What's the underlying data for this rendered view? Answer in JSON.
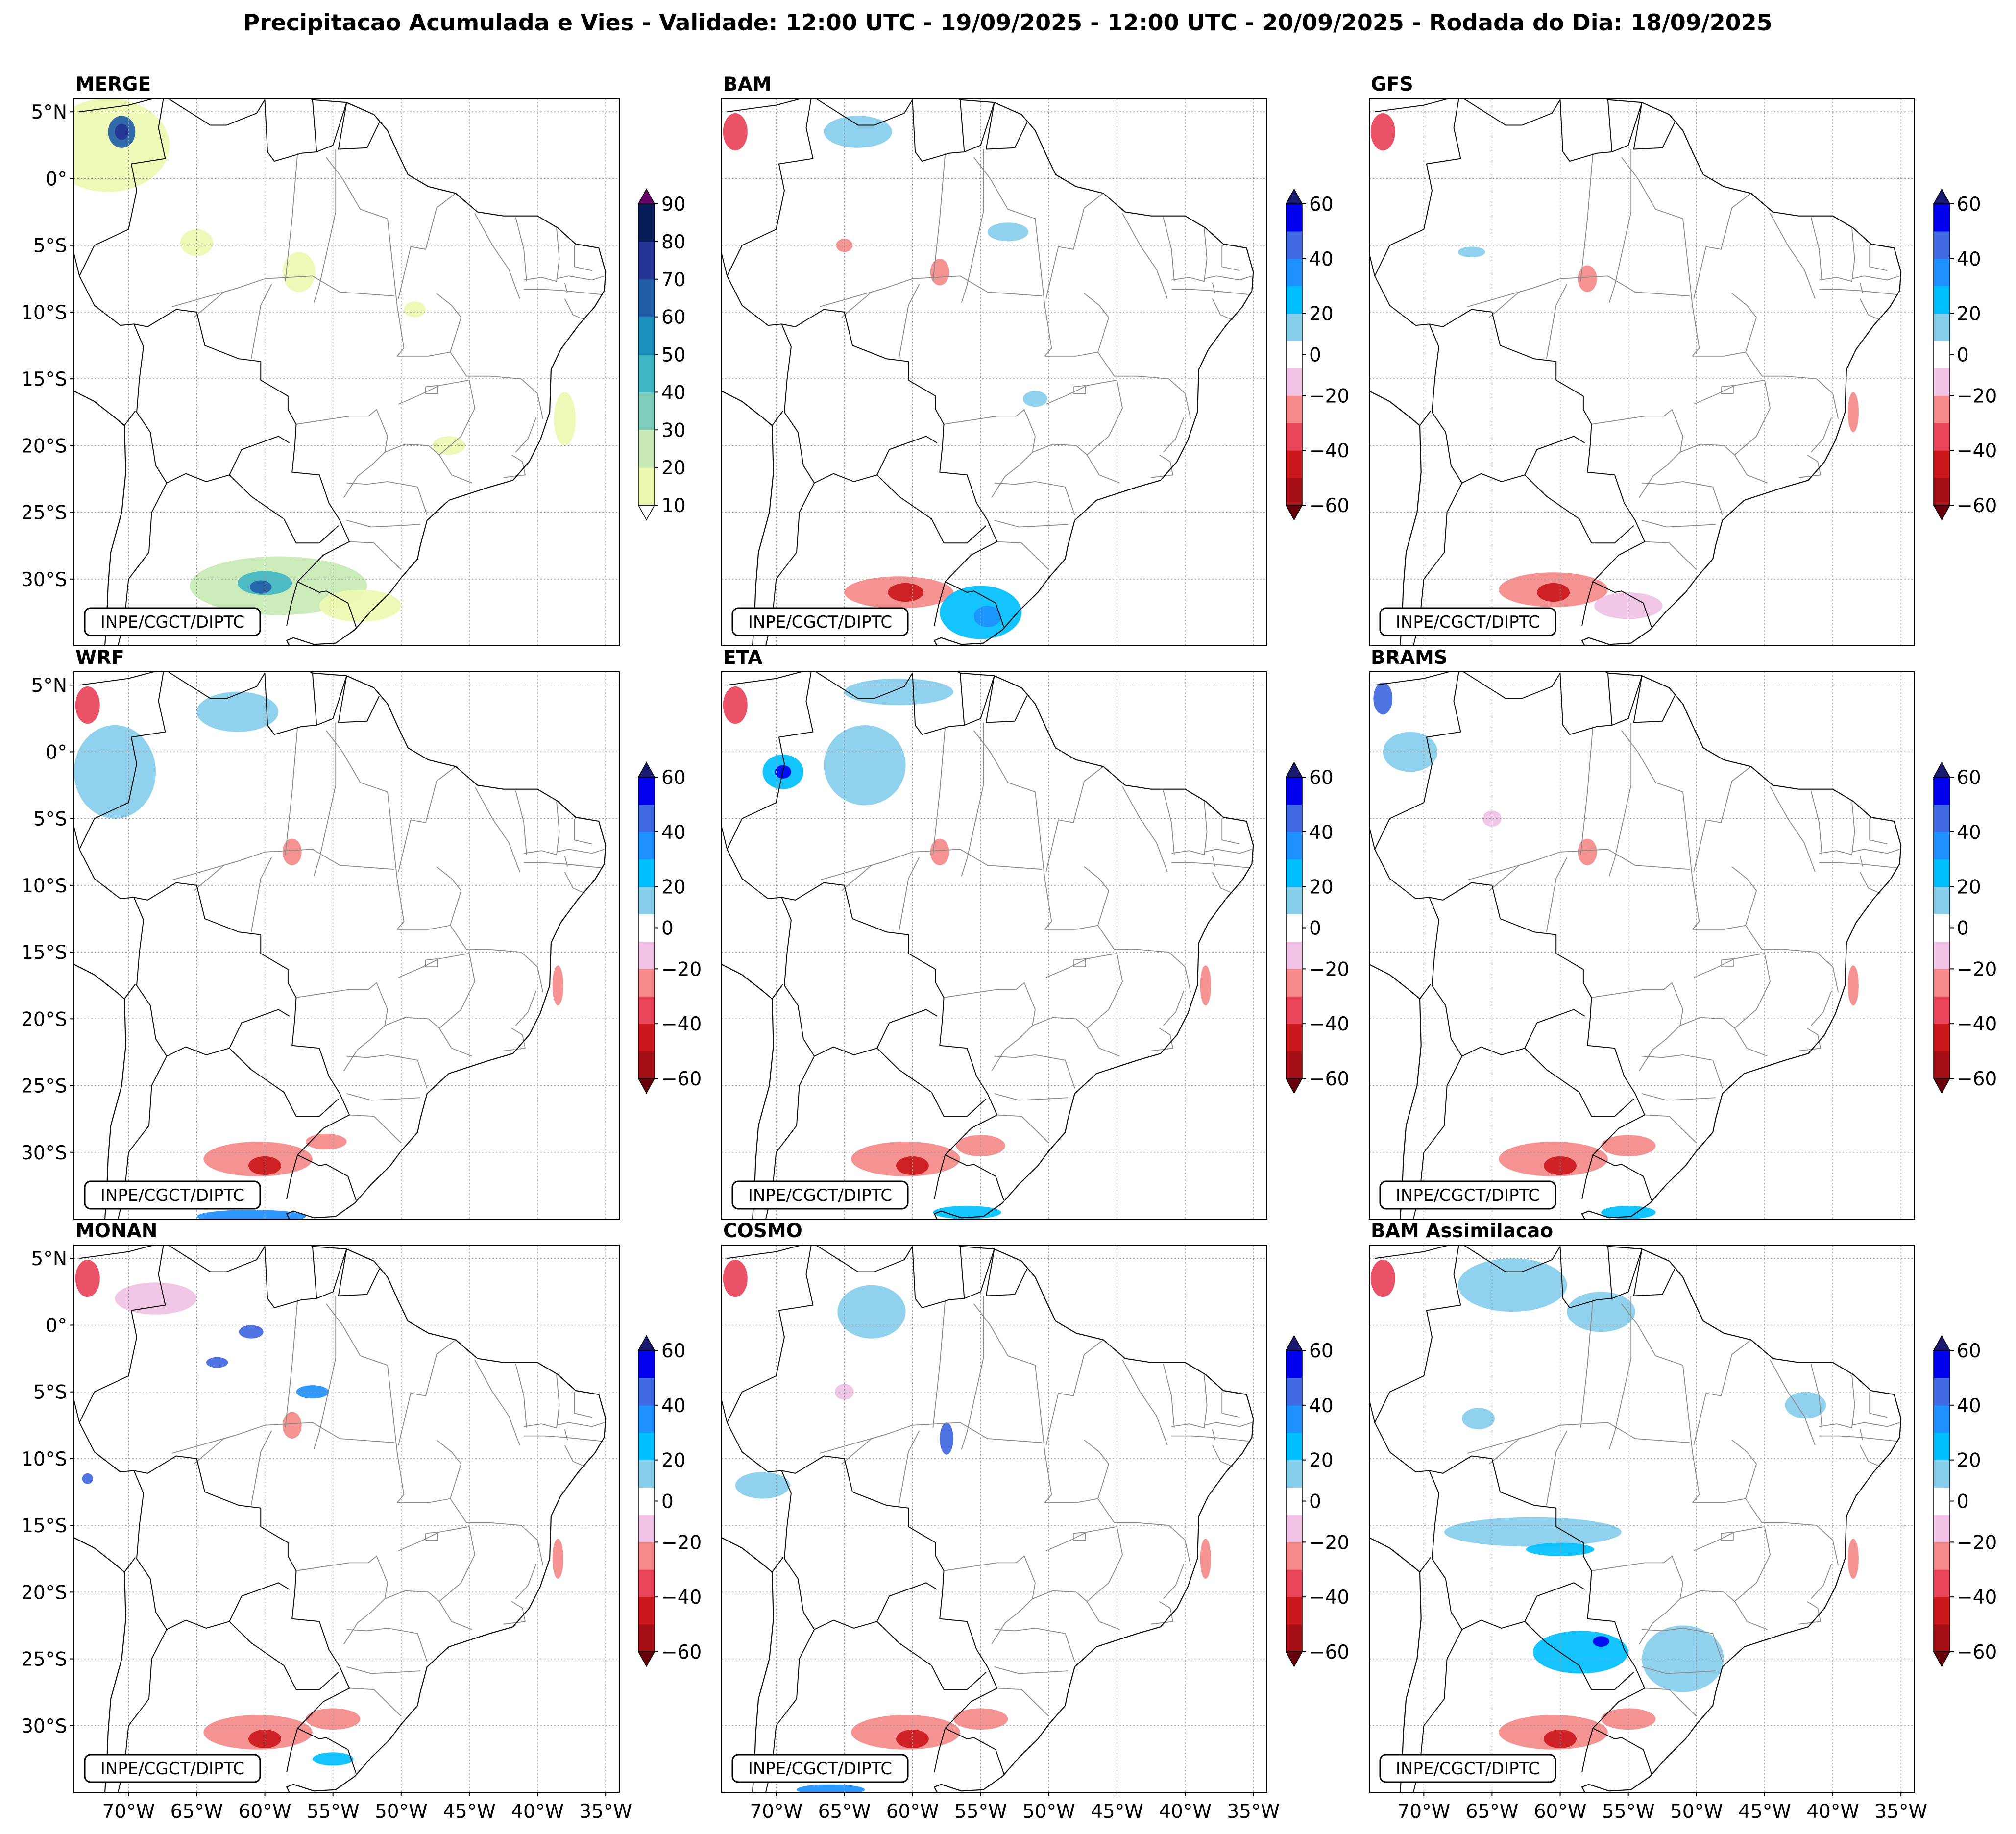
{
  "figure": {
    "title": "Precipitacao Acumulada e Vies - Validade: 12:00 UTC - 19/09/2025 - 12:00 UTC - 20/09/2025 - Rodada do Dia: 18/09/2025",
    "credit": "INPE/CGCT/DIPTC"
  },
  "axes": {
    "lat_ticks": [
      "5°N",
      "0°",
      "5°S",
      "10°S",
      "15°S",
      "20°S",
      "25°S",
      "30°S"
    ],
    "lon_ticks": [
      "70°W",
      "65°W",
      "60°W",
      "55°W",
      "50°W",
      "45°W",
      "40°W",
      "35°W"
    ],
    "lat_values": [
      5,
      0,
      -5,
      -10,
      -15,
      -20,
      -25,
      -30
    ],
    "lon_values": [
      -70,
      -65,
      -60,
      -55,
      -50,
      -45,
      -40,
      -35
    ],
    "lat_range": [
      -35,
      6
    ],
    "lon_range": [
      -74,
      -34
    ]
  },
  "panels": [
    {
      "name": "MERGE",
      "type": "precipitation"
    },
    {
      "name": "BAM",
      "type": "bias"
    },
    {
      "name": "GFS",
      "type": "bias"
    },
    {
      "name": "WRF",
      "type": "bias"
    },
    {
      "name": "ETA",
      "type": "bias"
    },
    {
      "name": "BRAMS",
      "type": "bias"
    },
    {
      "name": "MONAN",
      "type": "bias"
    },
    {
      "name": "COSMO",
      "type": "bias"
    },
    {
      "name": "BAM Assimilacao",
      "type": "bias"
    }
  ],
  "colorbars": {
    "precipitation": {
      "levels": [
        10,
        20,
        30,
        40,
        50,
        60,
        70,
        80,
        90
      ],
      "tick_labels": [
        "10",
        "20",
        "30",
        "40",
        "50",
        "60",
        "70",
        "80",
        "90"
      ],
      "colors": [
        "#edf8b1",
        "#c7e9b4",
        "#7fcdbb",
        "#41b6c4",
        "#1d91c0",
        "#225ea8",
        "#253494",
        "#081d58"
      ],
      "over": "#6a006a",
      "under": "#ffffff"
    },
    "bias": {
      "levels": [
        -60,
        -50,
        -40,
        -30,
        -20,
        -10,
        10,
        20,
        30,
        40,
        50,
        60
      ],
      "tick_labels": [
        "−60",
        "−40",
        "−20",
        "0",
        "20",
        "40",
        "60"
      ],
      "tick_values": [
        -60,
        -40,
        -20,
        0,
        20,
        40,
        60
      ],
      "colors": [
        "#a50f15",
        "#cb181d",
        "#e8445a",
        "#f48a8a",
        "#f0c2e6",
        "#ffffff",
        "#87ceeb",
        "#00bfff",
        "#1e90ff",
        "#4169e1",
        "#0000ee"
      ],
      "over": "#191970",
      "under": "#67000d"
    }
  },
  "fields": {
    "MERGE": [
      {
        "lon": -71.5,
        "lat": 2.5,
        "rx": 4.5,
        "ry": 3.5,
        "v": 12
      },
      {
        "lon": -70.5,
        "lat": 3.5,
        "rx": 1,
        "ry": 1.2,
        "v": 62
      },
      {
        "lon": -70.5,
        "lat": 3.5,
        "rx": 0.5,
        "ry": 0.6,
        "v": 75
      },
      {
        "lon": -65,
        "lat": -4.8,
        "rx": 1.2,
        "ry": 1,
        "v": 15
      },
      {
        "lon": -57.5,
        "lat": -7,
        "rx": 1.2,
        "ry": 1.5,
        "v": 15
      },
      {
        "lon": -49,
        "lat": -9.8,
        "rx": 0.8,
        "ry": 0.6,
        "v": 12
      },
      {
        "lon": -38,
        "lat": -18,
        "rx": 0.8,
        "ry": 2,
        "v": 15
      },
      {
        "lon": -46.5,
        "lat": -20,
        "rx": 1.2,
        "ry": 0.7,
        "v": 12
      },
      {
        "lon": -59,
        "lat": -30.5,
        "rx": 6.5,
        "ry": 2.2,
        "v": 22
      },
      {
        "lon": -60,
        "lat": -30.3,
        "rx": 2,
        "ry": 0.9,
        "v": 45
      },
      {
        "lon": -60.3,
        "lat": -30.6,
        "rx": 0.8,
        "ry": 0.5,
        "v": 66
      },
      {
        "lon": -53,
        "lat": -32,
        "rx": 3,
        "ry": 1.2,
        "v": 14
      }
    ],
    "BAM": [
      {
        "lon": -73,
        "lat": 3.5,
        "rx": 0.9,
        "ry": 1.4,
        "v": -35
      },
      {
        "lon": -64,
        "lat": 3.5,
        "rx": 2.5,
        "ry": 1.2,
        "v": 15
      },
      {
        "lon": -58,
        "lat": -7,
        "rx": 0.7,
        "ry": 1,
        "v": -25
      },
      {
        "lon": -65,
        "lat": -5,
        "rx": 0.6,
        "ry": 0.5,
        "v": -25
      },
      {
        "lon": -53,
        "lat": -4,
        "rx": 1.5,
        "ry": 0.7,
        "v": 14
      },
      {
        "lon": -51,
        "lat": -16.5,
        "rx": 0.9,
        "ry": 0.6,
        "v": 14
      },
      {
        "lon": -61,
        "lat": -31,
        "rx": 4,
        "ry": 1.2,
        "v": -22
      },
      {
        "lon": -60.5,
        "lat": -31,
        "rx": 1.3,
        "ry": 0.7,
        "v": -48
      },
      {
        "lon": -55,
        "lat": -32.5,
        "rx": 3,
        "ry": 2,
        "v": 22
      },
      {
        "lon": -54.5,
        "lat": -32.8,
        "rx": 1,
        "ry": 0.8,
        "v": 35
      }
    ],
    "GFS": [
      {
        "lon": -73,
        "lat": 3.5,
        "rx": 0.9,
        "ry": 1.4,
        "v": -35
      },
      {
        "lon": -58,
        "lat": -7.5,
        "rx": 0.7,
        "ry": 1,
        "v": -25
      },
      {
        "lon": -60.5,
        "lat": -30.8,
        "rx": 4,
        "ry": 1.3,
        "v": -22
      },
      {
        "lon": -60.5,
        "lat": -31,
        "rx": 1.2,
        "ry": 0.7,
        "v": -48
      },
      {
        "lon": -55,
        "lat": -32,
        "rx": 2.5,
        "ry": 1,
        "v": -15
      },
      {
        "lon": -66.5,
        "lat": -5.5,
        "rx": 1,
        "ry": 0.4,
        "v": 14
      },
      {
        "lon": -38.5,
        "lat": -17.5,
        "rx": 0.4,
        "ry": 1.5,
        "v": -25
      }
    ],
    "WRF": [
      {
        "lon": -73,
        "lat": 3.5,
        "rx": 0.9,
        "ry": 1.4,
        "v": -35
      },
      {
        "lon": -71,
        "lat": -1.5,
        "rx": 3,
        "ry": 3.5,
        "v": 15
      },
      {
        "lon": -62,
        "lat": 3,
        "rx": 3,
        "ry": 1.5,
        "v": 14
      },
      {
        "lon": -58,
        "lat": -7.5,
        "rx": 0.7,
        "ry": 1,
        "v": -25
      },
      {
        "lon": -60.5,
        "lat": -30.5,
        "rx": 4,
        "ry": 1.3,
        "v": -22
      },
      {
        "lon": -60,
        "lat": -31,
        "rx": 1.2,
        "ry": 0.7,
        "v": -48
      },
      {
        "lon": -55.5,
        "lat": -29.2,
        "rx": 1.5,
        "ry": 0.6,
        "v": -28
      },
      {
        "lon": -61,
        "lat": -34.8,
        "rx": 4,
        "ry": 0.5,
        "v": 30
      },
      {
        "lon": -38.5,
        "lat": -17.5,
        "rx": 0.4,
        "ry": 1.5,
        "v": -25
      }
    ],
    "ETA": [
      {
        "lon": -73,
        "lat": 3.5,
        "rx": 0.9,
        "ry": 1.4,
        "v": -35
      },
      {
        "lon": -69.5,
        "lat": -1.5,
        "rx": 1.5,
        "ry": 1.3,
        "v": 25
      },
      {
        "lon": -69.5,
        "lat": -1.5,
        "rx": 0.6,
        "ry": 0.5,
        "v": 50
      },
      {
        "lon": -63.5,
        "lat": -1,
        "rx": 3,
        "ry": 3,
        "v": 14
      },
      {
        "lon": -61,
        "lat": 4.5,
        "rx": 4,
        "ry": 1,
        "v": 14
      },
      {
        "lon": -58,
        "lat": -7.5,
        "rx": 0.7,
        "ry": 1,
        "v": -25
      },
      {
        "lon": -60.5,
        "lat": -30.5,
        "rx": 4,
        "ry": 1.3,
        "v": -22
      },
      {
        "lon": -60,
        "lat": -31,
        "rx": 1.2,
        "ry": 0.7,
        "v": -48
      },
      {
        "lon": -55,
        "lat": -29.5,
        "rx": 1.8,
        "ry": 0.8,
        "v": -28
      },
      {
        "lon": -56,
        "lat": -34.5,
        "rx": 2.5,
        "ry": 0.5,
        "v": 25
      },
      {
        "lon": -38.5,
        "lat": -17.5,
        "rx": 0.4,
        "ry": 1.5,
        "v": -25
      }
    ],
    "BRAMS": [
      {
        "lon": -73,
        "lat": 4,
        "rx": 0.7,
        "ry": 1.2,
        "v": 45
      },
      {
        "lon": -71,
        "lat": 0,
        "rx": 2,
        "ry": 1.5,
        "v": 14
      },
      {
        "lon": -65,
        "lat": -5,
        "rx": 0.7,
        "ry": 0.6,
        "v": -15
      },
      {
        "lon": -58,
        "lat": -7.5,
        "rx": 0.7,
        "ry": 1,
        "v": -25
      },
      {
        "lon": -60.5,
        "lat": -30.5,
        "rx": 4,
        "ry": 1.3,
        "v": -22
      },
      {
        "lon": -60,
        "lat": -31,
        "rx": 1.2,
        "ry": 0.7,
        "v": -48
      },
      {
        "lon": -55,
        "lat": -29.5,
        "rx": 2,
        "ry": 0.8,
        "v": -28
      },
      {
        "lon": -55,
        "lat": -34.5,
        "rx": 2,
        "ry": 0.5,
        "v": 25
      },
      {
        "lon": -38.5,
        "lat": -17.5,
        "rx": 0.4,
        "ry": 1.5,
        "v": -25
      }
    ],
    "MONAN": [
      {
        "lon": -73,
        "lat": 3.5,
        "rx": 0.9,
        "ry": 1.4,
        "v": -35
      },
      {
        "lon": -68,
        "lat": 2,
        "rx": 3,
        "ry": 1.2,
        "v": -15
      },
      {
        "lon": -61,
        "lat": -0.5,
        "rx": 0.9,
        "ry": 0.5,
        "v": 40
      },
      {
        "lon": -63.5,
        "lat": -2.8,
        "rx": 0.8,
        "ry": 0.4,
        "v": 40
      },
      {
        "lon": -56.5,
        "lat": -5,
        "rx": 1.2,
        "ry": 0.5,
        "v": 35
      },
      {
        "lon": -58,
        "lat": -7.5,
        "rx": 0.7,
        "ry": 1,
        "v": -25
      },
      {
        "lon": -73,
        "lat": -11.5,
        "rx": 0.4,
        "ry": 0.4,
        "v": 40
      },
      {
        "lon": -60.5,
        "lat": -30.5,
        "rx": 4,
        "ry": 1.3,
        "v": -22
      },
      {
        "lon": -60,
        "lat": -31,
        "rx": 1.2,
        "ry": 0.7,
        "v": -48
      },
      {
        "lon": -55,
        "lat": -29.5,
        "rx": 2,
        "ry": 0.8,
        "v": -28
      },
      {
        "lon": -55,
        "lat": -32.5,
        "rx": 1.5,
        "ry": 0.5,
        "v": 25
      },
      {
        "lon": -38.5,
        "lat": -17.5,
        "rx": 0.4,
        "ry": 1.5,
        "v": -25
      }
    ],
    "COSMO": [
      {
        "lon": -73,
        "lat": 3.5,
        "rx": 0.9,
        "ry": 1.4,
        "v": -35
      },
      {
        "lon": -63,
        "lat": 1,
        "rx": 2.5,
        "ry": 2,
        "v": 14
      },
      {
        "lon": -57.5,
        "lat": -8.5,
        "rx": 0.5,
        "ry": 1.2,
        "v": 40
      },
      {
        "lon": -65,
        "lat": -5,
        "rx": 0.7,
        "ry": 0.6,
        "v": -15
      },
      {
        "lon": -71,
        "lat": -12,
        "rx": 2,
        "ry": 1,
        "v": 14
      },
      {
        "lon": -60.5,
        "lat": -30.5,
        "rx": 4,
        "ry": 1.3,
        "v": -22
      },
      {
        "lon": -60,
        "lat": -31,
        "rx": 1.2,
        "ry": 0.7,
        "v": -48
      },
      {
        "lon": -55,
        "lat": -29.5,
        "rx": 2,
        "ry": 0.8,
        "v": -28
      },
      {
        "lon": -66,
        "lat": -34.8,
        "rx": 2.5,
        "ry": 0.4,
        "v": 30
      },
      {
        "lon": -38.5,
        "lat": -17.5,
        "rx": 0.4,
        "ry": 1.5,
        "v": -25
      }
    ],
    "BAM Assimilacao": [
      {
        "lon": -73,
        "lat": 3.5,
        "rx": 0.9,
        "ry": 1.4,
        "v": -35
      },
      {
        "lon": -63.5,
        "lat": 3,
        "rx": 4,
        "ry": 2,
        "v": 14
      },
      {
        "lon": -57,
        "lat": 1,
        "rx": 2.5,
        "ry": 1.5,
        "v": 14
      },
      {
        "lon": -66,
        "lat": -7,
        "rx": 1.2,
        "ry": 0.8,
        "v": 14
      },
      {
        "lon": -42,
        "lat": -6,
        "rx": 1.5,
        "ry": 1,
        "v": 14
      },
      {
        "lon": -62,
        "lat": -15.5,
        "rx": 6.5,
        "ry": 1.1,
        "v": 15
      },
      {
        "lon": -60,
        "lat": -16.8,
        "rx": 2.5,
        "ry": 0.5,
        "v": 28
      },
      {
        "lon": -58.5,
        "lat": -24.5,
        "rx": 3.5,
        "ry": 1.6,
        "v": 20
      },
      {
        "lon": -57,
        "lat": -23.7,
        "rx": 0.6,
        "ry": 0.4,
        "v": 50
      },
      {
        "lon": -51,
        "lat": -25,
        "rx": 3,
        "ry": 2.5,
        "v": 18
      },
      {
        "lon": -60.5,
        "lat": -30.5,
        "rx": 4,
        "ry": 1.3,
        "v": -22
      },
      {
        "lon": -60,
        "lat": -31,
        "rx": 1.2,
        "ry": 0.7,
        "v": -48
      },
      {
        "lon": -55,
        "lat": -29.5,
        "rx": 2,
        "ry": 0.8,
        "v": -28
      },
      {
        "lon": -38.5,
        "lat": -17.5,
        "rx": 0.4,
        "ry": 1.5,
        "v": -25
      }
    ]
  }
}
